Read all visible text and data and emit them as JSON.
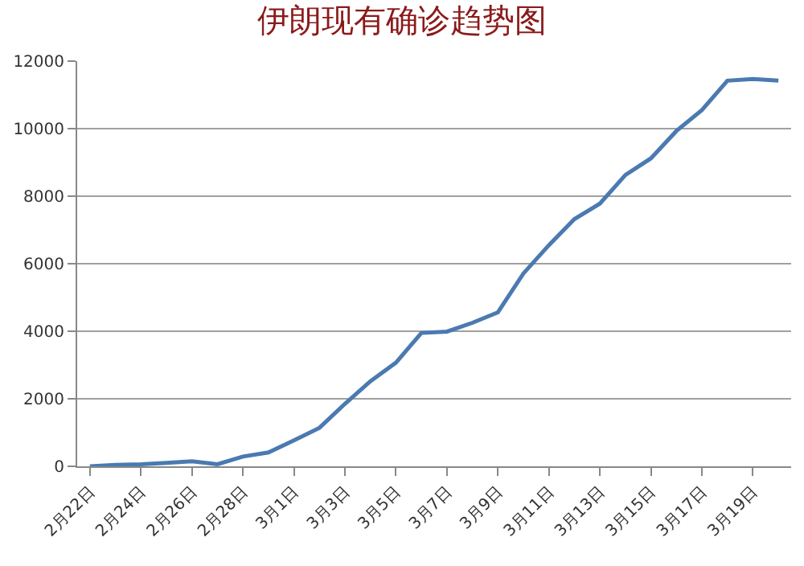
{
  "chart_data": {
    "type": "line",
    "title": "伊朗现有确诊趋势图",
    "categories": [
      "2月22日",
      null,
      "2月24日",
      null,
      "2月26日",
      null,
      "2月28日",
      null,
      "3月1日",
      null,
      "3月3日",
      null,
      "3月5日",
      null,
      "3月7日",
      null,
      "3月9日",
      null,
      "3月11日",
      null,
      "3月13日",
      null,
      "3月15日",
      null,
      "3月17日",
      null,
      "3月19日",
      null
    ],
    "series": [
      {
        "color": "#4a7ab0",
        "values": [
          0,
          40,
          60,
          100,
          150,
          60,
          290,
          410,
          770,
          1140,
          1850,
          2520,
          3070,
          3950,
          3990,
          4250,
          4560,
          5710,
          6550,
          7320,
          7780,
          8630,
          9120,
          9930,
          10550,
          11420,
          11470,
          11420
        ]
      }
    ],
    "ylim": [
      0,
      12000
    ],
    "yticks": [
      0,
      2000,
      4000,
      6000,
      8000,
      10000,
      12000
    ],
    "grid": "y",
    "marker": "none",
    "line_style": "solid"
  }
}
